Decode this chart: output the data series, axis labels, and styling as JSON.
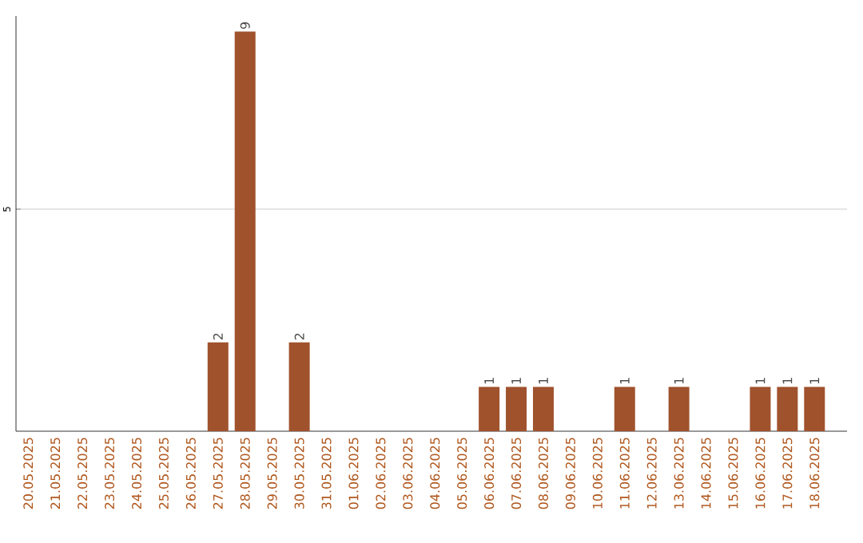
{
  "chart_data": {
    "type": "bar",
    "categories": [
      "20.05.2025",
      "21.05.2025",
      "22.05.2025",
      "23.05.2025",
      "24.05.2025",
      "25.05.2025",
      "26.05.2025",
      "27.05.2025",
      "28.05.2025",
      "29.05.2025",
      "30.05.2025",
      "31.05.2025",
      "01.06.2025",
      "02.06.2025",
      "03.06.2025",
      "04.06.2025",
      "05.06.2025",
      "06.06.2025",
      "07.06.2025",
      "08.06.2025",
      "09.06.2025",
      "10.06.2025",
      "11.06.2025",
      "12.06.2025",
      "13.06.2025",
      "14.06.2025",
      "15.06.2025",
      "16.06.2025",
      "17.06.2025",
      "18.06.2025"
    ],
    "values": [
      0,
      0,
      0,
      0,
      0,
      0,
      0,
      2,
      9,
      0,
      2,
      0,
      0,
      0,
      0,
      0,
      0,
      1,
      1,
      1,
      0,
      0,
      1,
      0,
      1,
      0,
      0,
      1,
      1,
      1
    ],
    "value_labels": [
      null,
      null,
      null,
      null,
      null,
      null,
      null,
      "2",
      "9",
      null,
      "2",
      null,
      null,
      null,
      null,
      null,
      null,
      "1",
      "1",
      "1",
      null,
      null,
      "1",
      null,
      "1",
      null,
      null,
      "1",
      "1",
      "1"
    ],
    "color": "#a0522d",
    "ylim": [
      0,
      9.35
    ],
    "yticks": [
      5
    ],
    "grid": "y"
  }
}
